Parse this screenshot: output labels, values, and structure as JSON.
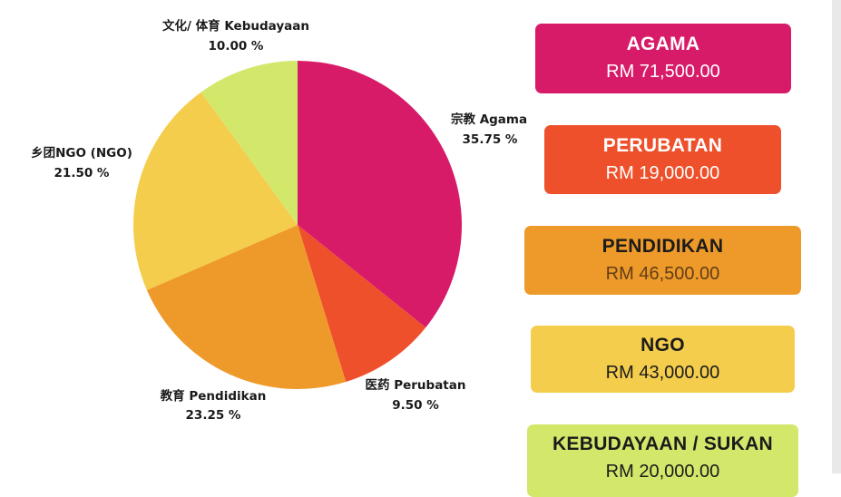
{
  "chart_data": {
    "type": "pie",
    "slices": [
      {
        "label": "宗教 Agama",
        "value": 35.75,
        "value_text": "35.75 %",
        "color": "#d81b69"
      },
      {
        "label": "医药 Perubatan",
        "value": 9.5,
        "value_text": "9.50 %",
        "color": "#ee502b"
      },
      {
        "label": "教育 Pendidikan",
        "value": 23.25,
        "value_text": "23.25 %",
        "color": "#ee9a2a"
      },
      {
        "label": "乡团NGO (NGO)",
        "value": 21.5,
        "value_text": "21.50 %",
        "color": "#f4cd4c"
      },
      {
        "label": "文化/ 体育 Kebudayaan",
        "value": 10.0,
        "value_text": "10.00 %",
        "color": "#d3e76b"
      }
    ]
  },
  "cards": [
    {
      "title": "AGAMA",
      "amount": "RM 71,500.00",
      "color": "#d81b69"
    },
    {
      "title": "PERUBATAN",
      "amount": "RM 19,000.00",
      "color": "#ee502b"
    },
    {
      "title": "PENDIDIKAN",
      "amount": "RM 46,500.00",
      "color": "#ee9a2a"
    },
    {
      "title": "NGO",
      "amount": "RM 43,000.00",
      "color": "#f4cd4c"
    },
    {
      "title": "KEBUDAYAAN / SUKAN",
      "amount": "RM 20,000.00",
      "color": "#d3e76b"
    }
  ]
}
